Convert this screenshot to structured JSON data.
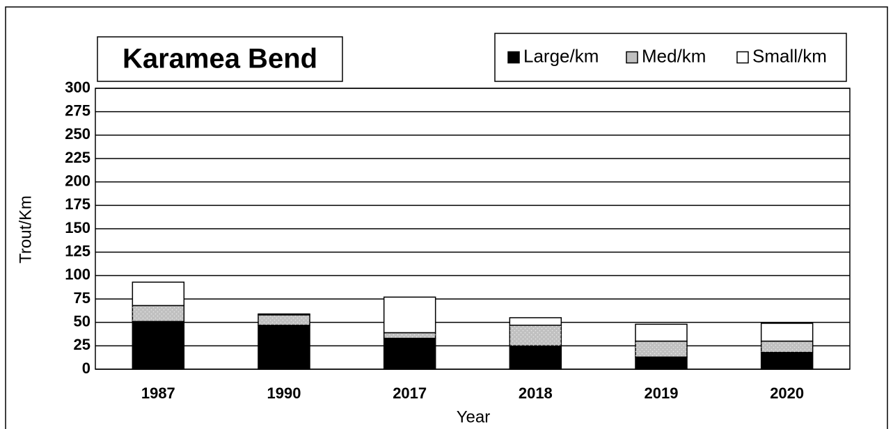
{
  "chart_data": {
    "type": "stacked_bar",
    "title": "Karamea Bend",
    "x_label": "Year",
    "y_label": "Trout/Km",
    "categories": [
      "1987",
      "1990",
      "2017",
      "2018",
      "2019",
      "2020"
    ],
    "series": [
      {
        "name": "Large/km",
        "color": "#000000",
        "values": [
          51,
          47,
          33,
          25,
          13,
          18
        ]
      },
      {
        "name": "Med/km",
        "color": "#c0c0c0",
        "values": [
          17,
          11,
          6,
          22,
          17,
          12
        ]
      },
      {
        "name": "Small/km",
        "color": "#ffffff",
        "values": [
          25,
          1,
          38,
          8,
          18,
          19
        ]
      }
    ],
    "ylim": [
      0,
      300
    ],
    "yticks": [
      0,
      25,
      50,
      75,
      100,
      125,
      150,
      175,
      200,
      225,
      250,
      275,
      300
    ],
    "grid": true,
    "legend": "top-right"
  }
}
